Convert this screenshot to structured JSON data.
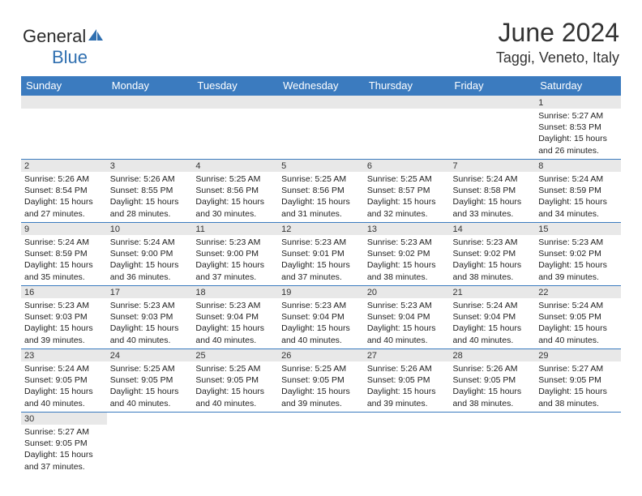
{
  "logo": {
    "text1": "General",
    "text2": "Blue"
  },
  "title": "June 2024",
  "location": "Taggi, Veneto, Italy",
  "colors": {
    "header_bg": "#3b7bbf",
    "header_text": "#ffffff",
    "daynum_bg": "#e8e8e8",
    "divider": "#3b7bbf",
    "logo_blue": "#2f6fb0"
  },
  "day_headers": [
    "Sunday",
    "Monday",
    "Tuesday",
    "Wednesday",
    "Thursday",
    "Friday",
    "Saturday"
  ],
  "weeks": [
    [
      null,
      null,
      null,
      null,
      null,
      null,
      {
        "n": "1",
        "sr": "Sunrise: 5:27 AM",
        "ss": "Sunset: 8:53 PM",
        "dl": "Daylight: 15 hours and 26 minutes."
      }
    ],
    [
      {
        "n": "2",
        "sr": "Sunrise: 5:26 AM",
        "ss": "Sunset: 8:54 PM",
        "dl": "Daylight: 15 hours and 27 minutes."
      },
      {
        "n": "3",
        "sr": "Sunrise: 5:26 AM",
        "ss": "Sunset: 8:55 PM",
        "dl": "Daylight: 15 hours and 28 minutes."
      },
      {
        "n": "4",
        "sr": "Sunrise: 5:25 AM",
        "ss": "Sunset: 8:56 PM",
        "dl": "Daylight: 15 hours and 30 minutes."
      },
      {
        "n": "5",
        "sr": "Sunrise: 5:25 AM",
        "ss": "Sunset: 8:56 PM",
        "dl": "Daylight: 15 hours and 31 minutes."
      },
      {
        "n": "6",
        "sr": "Sunrise: 5:25 AM",
        "ss": "Sunset: 8:57 PM",
        "dl": "Daylight: 15 hours and 32 minutes."
      },
      {
        "n": "7",
        "sr": "Sunrise: 5:24 AM",
        "ss": "Sunset: 8:58 PM",
        "dl": "Daylight: 15 hours and 33 minutes."
      },
      {
        "n": "8",
        "sr": "Sunrise: 5:24 AM",
        "ss": "Sunset: 8:59 PM",
        "dl": "Daylight: 15 hours and 34 minutes."
      }
    ],
    [
      {
        "n": "9",
        "sr": "Sunrise: 5:24 AM",
        "ss": "Sunset: 8:59 PM",
        "dl": "Daylight: 15 hours and 35 minutes."
      },
      {
        "n": "10",
        "sr": "Sunrise: 5:24 AM",
        "ss": "Sunset: 9:00 PM",
        "dl": "Daylight: 15 hours and 36 minutes."
      },
      {
        "n": "11",
        "sr": "Sunrise: 5:23 AM",
        "ss": "Sunset: 9:00 PM",
        "dl": "Daylight: 15 hours and 37 minutes."
      },
      {
        "n": "12",
        "sr": "Sunrise: 5:23 AM",
        "ss": "Sunset: 9:01 PM",
        "dl": "Daylight: 15 hours and 37 minutes."
      },
      {
        "n": "13",
        "sr": "Sunrise: 5:23 AM",
        "ss": "Sunset: 9:02 PM",
        "dl": "Daylight: 15 hours and 38 minutes."
      },
      {
        "n": "14",
        "sr": "Sunrise: 5:23 AM",
        "ss": "Sunset: 9:02 PM",
        "dl": "Daylight: 15 hours and 38 minutes."
      },
      {
        "n": "15",
        "sr": "Sunrise: 5:23 AM",
        "ss": "Sunset: 9:02 PM",
        "dl": "Daylight: 15 hours and 39 minutes."
      }
    ],
    [
      {
        "n": "16",
        "sr": "Sunrise: 5:23 AM",
        "ss": "Sunset: 9:03 PM",
        "dl": "Daylight: 15 hours and 39 minutes."
      },
      {
        "n": "17",
        "sr": "Sunrise: 5:23 AM",
        "ss": "Sunset: 9:03 PM",
        "dl": "Daylight: 15 hours and 40 minutes."
      },
      {
        "n": "18",
        "sr": "Sunrise: 5:23 AM",
        "ss": "Sunset: 9:04 PM",
        "dl": "Daylight: 15 hours and 40 minutes."
      },
      {
        "n": "19",
        "sr": "Sunrise: 5:23 AM",
        "ss": "Sunset: 9:04 PM",
        "dl": "Daylight: 15 hours and 40 minutes."
      },
      {
        "n": "20",
        "sr": "Sunrise: 5:23 AM",
        "ss": "Sunset: 9:04 PM",
        "dl": "Daylight: 15 hours and 40 minutes."
      },
      {
        "n": "21",
        "sr": "Sunrise: 5:24 AM",
        "ss": "Sunset: 9:04 PM",
        "dl": "Daylight: 15 hours and 40 minutes."
      },
      {
        "n": "22",
        "sr": "Sunrise: 5:24 AM",
        "ss": "Sunset: 9:05 PM",
        "dl": "Daylight: 15 hours and 40 minutes."
      }
    ],
    [
      {
        "n": "23",
        "sr": "Sunrise: 5:24 AM",
        "ss": "Sunset: 9:05 PM",
        "dl": "Daylight: 15 hours and 40 minutes."
      },
      {
        "n": "24",
        "sr": "Sunrise: 5:25 AM",
        "ss": "Sunset: 9:05 PM",
        "dl": "Daylight: 15 hours and 40 minutes."
      },
      {
        "n": "25",
        "sr": "Sunrise: 5:25 AM",
        "ss": "Sunset: 9:05 PM",
        "dl": "Daylight: 15 hours and 40 minutes."
      },
      {
        "n": "26",
        "sr": "Sunrise: 5:25 AM",
        "ss": "Sunset: 9:05 PM",
        "dl": "Daylight: 15 hours and 39 minutes."
      },
      {
        "n": "27",
        "sr": "Sunrise: 5:26 AM",
        "ss": "Sunset: 9:05 PM",
        "dl": "Daylight: 15 hours and 39 minutes."
      },
      {
        "n": "28",
        "sr": "Sunrise: 5:26 AM",
        "ss": "Sunset: 9:05 PM",
        "dl": "Daylight: 15 hours and 38 minutes."
      },
      {
        "n": "29",
        "sr": "Sunrise: 5:27 AM",
        "ss": "Sunset: 9:05 PM",
        "dl": "Daylight: 15 hours and 38 minutes."
      }
    ],
    [
      {
        "n": "30",
        "sr": "Sunrise: 5:27 AM",
        "ss": "Sunset: 9:05 PM",
        "dl": "Daylight: 15 hours and 37 minutes."
      },
      null,
      null,
      null,
      null,
      null,
      null
    ]
  ]
}
